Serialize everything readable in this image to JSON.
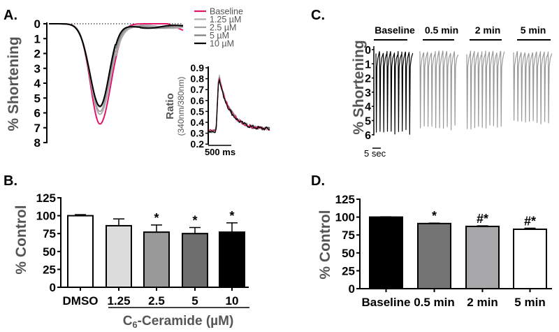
{
  "colors": {
    "baseline": "#e0156b",
    "c125": "#b0b0b0",
    "c25": "#a0a0a0",
    "c5": "#808080",
    "c10": "#000000",
    "axis": "#000000",
    "ylabel": "#555555"
  },
  "chart_data": [
    {
      "panel": "A.",
      "type": "line",
      "ylabel": "% Shortening",
      "yticks": [
        "0",
        "1",
        "2",
        "3",
        "4",
        "5",
        "6",
        "7",
        "8"
      ],
      "ylim": [
        0,
        8
      ],
      "inverted_y": true,
      "series": [
        {
          "name": "Baseline",
          "peak": 6.75,
          "color": "#e0156b"
        },
        {
          "name": "1.25 µM",
          "peak": 6.1,
          "color": "#b0b0b0"
        },
        {
          "name": "2.5 µM",
          "peak": 5.9,
          "color": "#a0a0a0"
        },
        {
          "name": "5 µM",
          "peak": 5.6,
          "color": "#808080"
        },
        {
          "name": "10 µM",
          "peak": 5.55,
          "color": "#000000"
        }
      ],
      "inset": {
        "type": "line",
        "ylabel_line1": "Ratio",
        "ylabel_line2": "(340nm/380nm)",
        "yticks": [
          "0.9",
          "0.8",
          "0.7",
          "0.6",
          "0.5",
          "0.4",
          "0.3",
          "0.2"
        ],
        "ylim": [
          0.2,
          0.9
        ],
        "baseline_ratio": 0.32,
        "peak_ratio": 0.85,
        "scale_bar": "500 ms"
      }
    },
    {
      "panel": "B.",
      "type": "bar",
      "ylabel": "% Control",
      "xlabel": "C",
      "xlabel_sub": "6",
      "xlabel_rest": "-Ceramide (µM)",
      "yticks": [
        "0",
        "25",
        "50",
        "75",
        "100",
        "125"
      ],
      "ylim": [
        0,
        125
      ],
      "categories": [
        "DMSO",
        "1.25",
        "2.5",
        "5",
        "10"
      ],
      "values": [
        100,
        86,
        77,
        75,
        77
      ],
      "errors": [
        1.5,
        9.5,
        10,
        8.5,
        13
      ],
      "annotations": [
        "",
        "",
        "*",
        "*",
        "*"
      ],
      "fills": [
        "#ffffff",
        "#dcdcdc",
        "#999999",
        "#6e6e6e",
        "#000000"
      ]
    },
    {
      "panel": "C.",
      "type": "line",
      "ylabel": "% Shortening",
      "yticks": [
        "0",
        "1",
        "2",
        "3",
        "4",
        "5",
        "6"
      ],
      "ylim": [
        0,
        6
      ],
      "inverted_y": true,
      "segments": [
        {
          "label": "Baseline",
          "peak": 5.8,
          "color": "#000000"
        },
        {
          "label": "0.5 min",
          "peak": 5.5,
          "color": "#999999"
        },
        {
          "label": "2 min",
          "peak": 5.45,
          "color": "#999999"
        },
        {
          "label": "5 min",
          "peak": 5.1,
          "color": "#999999"
        }
      ],
      "scale_bar": "5 sec"
    },
    {
      "panel": "D.",
      "type": "bar",
      "ylabel": "% Control",
      "yticks": [
        "0",
        "25",
        "50",
        "75",
        "100",
        "125"
      ],
      "ylim": [
        0,
        125
      ],
      "categories": [
        "Baseline",
        "0.5 min",
        "2 min",
        "5 min"
      ],
      "values": [
        100,
        91,
        87,
        83
      ],
      "errors": [
        0.4,
        0.6,
        0.8,
        1.5
      ],
      "annotations": [
        "",
        "*",
        "#*",
        "#*"
      ],
      "fills": [
        "#000000",
        "#747474",
        "#a8a8aa",
        "#ffffff"
      ]
    }
  ]
}
